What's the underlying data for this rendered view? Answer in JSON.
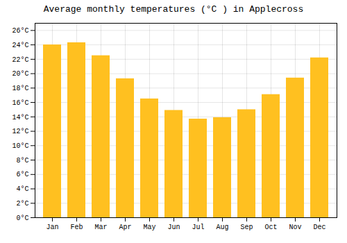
{
  "chart_data": {
    "type": "bar",
    "title": "Average monthly temperatures (°C ) in Applecross",
    "categories": [
      "Jan",
      "Feb",
      "Mar",
      "Apr",
      "May",
      "Jun",
      "Jul",
      "Aug",
      "Sep",
      "Oct",
      "Nov",
      "Dec"
    ],
    "values": [
      24.0,
      24.3,
      22.5,
      19.3,
      16.5,
      14.9,
      13.7,
      13.9,
      15.0,
      17.1,
      19.4,
      22.2
    ],
    "color": "#FFC020",
    "ylim": [
      0,
      27
    ],
    "yticks": [
      {
        "value": 0,
        "label": "0°C"
      },
      {
        "value": 2,
        "label": "2°C"
      },
      {
        "value": 4,
        "label": "4°C"
      },
      {
        "value": 6,
        "label": "6°C"
      },
      {
        "value": 8,
        "label": "8°C"
      },
      {
        "value": 10,
        "label": "10°C"
      },
      {
        "value": 12,
        "label": "12°C"
      },
      {
        "value": 14,
        "label": "14°C"
      },
      {
        "value": 16,
        "label": "16°C"
      },
      {
        "value": 18,
        "label": "18°C"
      },
      {
        "value": 20,
        "label": "20°C"
      },
      {
        "value": 22,
        "label": "22°C"
      },
      {
        "value": 24,
        "label": "24°C"
      },
      {
        "value": 26,
        "label": "26°C"
      }
    ],
    "grid": true
  }
}
